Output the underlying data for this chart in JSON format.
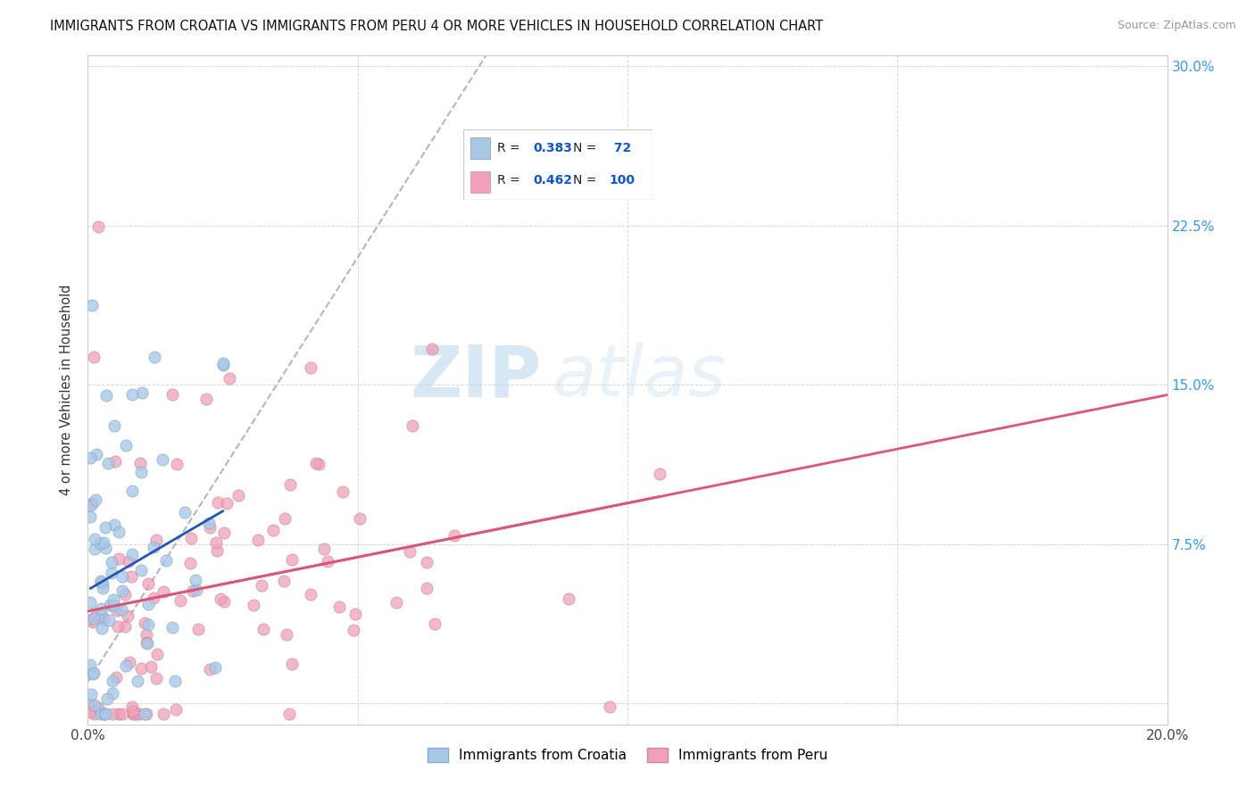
{
  "title": "IMMIGRANTS FROM CROATIA VS IMMIGRANTS FROM PERU 4 OR MORE VEHICLES IN HOUSEHOLD CORRELATION CHART",
  "source": "Source: ZipAtlas.com",
  "ylabel": "4 or more Vehicles in Household",
  "xlabel_croatia": "Immigrants from Croatia",
  "xlabel_peru": "Immigrants from Peru",
  "xlim": [
    0.0,
    0.2
  ],
  "ylim": [
    -0.01,
    0.305
  ],
  "xticks": [
    0.0,
    0.05,
    0.1,
    0.15,
    0.2
  ],
  "yticks": [
    0.0,
    0.075,
    0.15,
    0.225,
    0.3
  ],
  "croatia_R": 0.383,
  "croatia_N": 72,
  "peru_R": 0.462,
  "peru_N": 100,
  "croatia_color": "#a8c8e8",
  "croatia_edge_color": "#88aacc",
  "croatia_line_color": "#2255bb",
  "peru_color": "#f0a0b8",
  "peru_edge_color": "#cc8899",
  "peru_line_color": "#dd5577",
  "diag_color": "#aaaaaa",
  "watermark_color": "#cce0f0",
  "legend_text_color": "#222222",
  "legend_val_color": "#1155cc",
  "right_tick_color": "#3399ff",
  "background_color": "#ffffff",
  "grid_color": "#cccccc"
}
